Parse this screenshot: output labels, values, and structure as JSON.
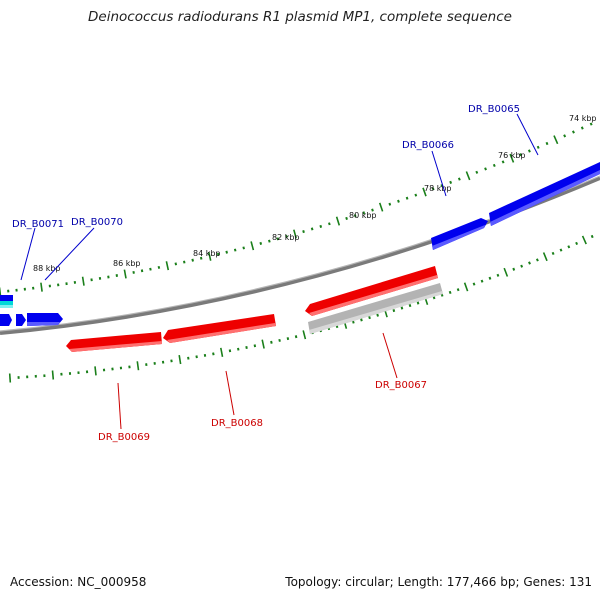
{
  "title": "Deinococcus radiodurans R1 plasmid MP1, complete sequence",
  "accession": "Accession: NC_000958",
  "topology": "Topology: circular; Length: 177,466 bp; Genes: 131",
  "colors": {
    "backbone": "#808080",
    "forward_gene": "#0000ee",
    "reverse_gene": "#ee0000",
    "reverse_other": "#b0b0b0",
    "forward_other": "#00d8d8",
    "tick": "#1a7f1a",
    "forward_label": "#0000aa",
    "reverse_label": "#cc0000"
  },
  "scale_labels": [
    "74 kbp",
    "76 kbp",
    "78 kbp",
    "80 kbp",
    "82 kbp",
    "84 kbp",
    "86 kbp",
    "88 kbp"
  ],
  "gene_labels": {
    "forward": [
      "DR_B0065",
      "DR_B0066",
      "DR_B0070",
      "DR_B0071"
    ],
    "reverse": [
      "DR_B0067",
      "DR_B0068",
      "DR_B0069"
    ]
  }
}
